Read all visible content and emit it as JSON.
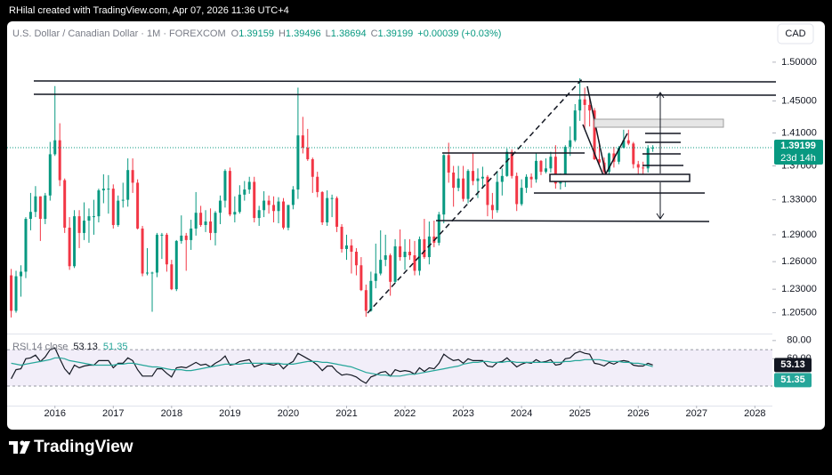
{
  "header": {
    "title": "RHilal created with TradingView.com, Apr 07, 2026 11:36 UTC+4"
  },
  "legend": {
    "symbol": "U.S. Dollar / Canadian Dollar · 1M · FOREXCOM",
    "o_label": "O",
    "open": "1.39159",
    "h_label": "H",
    "high": "1.39496",
    "l_label": "L",
    "low": "1.38694",
    "c_label": "C",
    "close": "1.39199",
    "change": "+0.00039 (+0.03%)"
  },
  "currency_button": "CAD",
  "countdown": "23d 14h",
  "footer": {
    "logo": "TradingView"
  },
  "chart_data": {
    "type": "candlestick",
    "log_scale": true,
    "grid": false,
    "up_color": "#089981",
    "down_color": "#f23645",
    "xlim": [
      2015.18,
      2028.3
    ],
    "xticks": [
      2016,
      2017,
      2018,
      2019,
      2020,
      2021,
      2022,
      2023,
      2024,
      2025,
      2026,
      2027,
      2028
    ],
    "ylim": [
      1.186,
      1.521
    ],
    "yticks": [
      {
        "value": 1.5,
        "label": "1.50000"
      },
      {
        "value": 1.45,
        "label": "1.45000"
      },
      {
        "value": 1.41,
        "label": "1.41000"
      },
      {
        "value": 1.37,
        "label": "1.37000"
      },
      {
        "value": 1.33,
        "label": "1.33000"
      },
      {
        "value": 1.29,
        "label": "1.29000"
      },
      {
        "value": 1.26,
        "label": "1.26000"
      },
      {
        "value": 1.23,
        "label": "1.23000"
      },
      {
        "value": 1.205,
        "label": "1.20500"
      }
    ],
    "x": [
      2015.25,
      2015.333,
      2015.417,
      2015.5,
      2015.583,
      2015.667,
      2015.75,
      2015.833,
      2015.917,
      2016,
      2016.083,
      2016.167,
      2016.25,
      2016.333,
      2016.417,
      2016.5,
      2016.583,
      2016.667,
      2016.75,
      2016.833,
      2016.917,
      2017,
      2017.083,
      2017.167,
      2017.25,
      2017.333,
      2017.417,
      2017.5,
      2017.583,
      2017.667,
      2017.75,
      2017.833,
      2017.917,
      2018,
      2018.083,
      2018.167,
      2018.25,
      2018.333,
      2018.417,
      2018.5,
      2018.583,
      2018.667,
      2018.75,
      2018.833,
      2018.917,
      2019,
      2019.083,
      2019.167,
      2019.25,
      2019.333,
      2019.417,
      2019.5,
      2019.583,
      2019.667,
      2019.75,
      2019.833,
      2019.917,
      2020,
      2020.083,
      2020.167,
      2020.25,
      2020.333,
      2020.417,
      2020.5,
      2020.583,
      2020.667,
      2020.75,
      2020.833,
      2020.917,
      2021,
      2021.083,
      2021.167,
      2021.25,
      2021.333,
      2021.417,
      2021.5,
      2021.583,
      2021.667,
      2021.75,
      2021.833,
      2021.917,
      2022,
      2022.083,
      2022.167,
      2022.25,
      2022.333,
      2022.417,
      2022.5,
      2022.583,
      2022.667,
      2022.75,
      2022.833,
      2022.917,
      2023,
      2023.083,
      2023.167,
      2023.25,
      2023.333,
      2023.417,
      2023.5,
      2023.583,
      2023.667,
      2023.75,
      2023.833,
      2023.917,
      2024,
      2024.083,
      2024.167,
      2024.25,
      2024.333,
      2024.417,
      2024.5,
      2024.583,
      2024.667,
      2024.75,
      2024.833,
      2024.917,
      2025,
      2025.083,
      2025.167,
      2025.25,
      2025.333,
      2025.417,
      2025.5,
      2025.583,
      2025.667,
      2025.75,
      2025.833,
      2025.917,
      2026,
      2026.083,
      2026.167,
      2026.25
    ],
    "open": [
      1.245,
      1.207,
      1.244,
      1.249,
      1.308,
      1.316,
      1.334,
      1.308,
      1.335,
      1.384,
      1.401,
      1.353,
      1.298,
      1.255,
      1.311,
      1.292,
      1.306,
      1.311,
      1.311,
      1.341,
      1.343,
      1.343,
      1.301,
      1.329,
      1.33,
      1.365,
      1.35,
      1.297,
      1.247,
      1.248,
      1.248,
      1.29,
      1.29,
      1.257,
      1.23,
      1.283,
      1.289,
      1.284,
      1.297,
      1.315,
      1.301,
      1.305,
      1.292,
      1.315,
      1.329,
      1.364,
      1.313,
      1.316,
      1.336,
      1.342,
      1.351,
      1.309,
      1.318,
      1.329,
      1.324,
      1.317,
      1.328,
      1.298,
      1.324,
      1.342,
      1.407,
      1.392,
      1.378,
      1.357,
      1.339,
      1.304,
      1.332,
      1.332,
      1.299,
      1.274,
      1.278,
      1.271,
      1.256,
      1.229,
      1.207,
      1.239,
      1.247,
      1.262,
      1.267,
      1.238,
      1.277,
      1.265,
      1.271,
      1.267,
      1.25,
      1.285,
      1.265,
      1.288,
      1.281,
      1.313,
      1.383,
      1.362,
      1.344,
      1.355,
      1.331,
      1.364,
      1.352,
      1.355,
      1.357,
      1.324,
      1.318,
      1.351,
      1.358,
      1.387,
      1.358,
      1.325,
      1.344,
      1.357,
      1.354,
      1.376,
      1.363,
      1.367,
      1.381,
      1.349,
      1.352,
      1.393,
      1.401,
      1.438,
      1.452,
      1.445,
      1.438,
      1.378,
      1.374,
      1.363,
      1.385,
      1.375,
      1.392,
      1.401,
      1.397,
      1.372,
      1.368,
      1.367,
      1.39159
    ],
    "high": [
      1.252,
      1.25,
      1.256,
      1.31,
      1.338,
      1.346,
      1.334,
      1.338,
      1.399,
      1.469,
      1.422,
      1.355,
      1.31,
      1.318,
      1.318,
      1.327,
      1.32,
      1.33,
      1.343,
      1.36,
      1.359,
      1.348,
      1.335,
      1.35,
      1.379,
      1.379,
      1.354,
      1.3,
      1.275,
      1.249,
      1.292,
      1.292,
      1.292,
      1.262,
      1.284,
      1.312,
      1.292,
      1.307,
      1.339,
      1.323,
      1.318,
      1.32,
      1.317,
      1.335,
      1.366,
      1.368,
      1.334,
      1.347,
      1.352,
      1.357,
      1.357,
      1.323,
      1.34,
      1.335,
      1.334,
      1.333,
      1.332,
      1.324,
      1.346,
      1.467,
      1.43,
      1.415,
      1.38,
      1.363,
      1.34,
      1.341,
      1.336,
      1.334,
      1.302,
      1.29,
      1.285,
      1.275,
      1.265,
      1.235,
      1.249,
      1.28,
      1.295,
      1.29,
      1.269,
      1.285,
      1.296,
      1.285,
      1.285,
      1.283,
      1.288,
      1.308,
      1.305,
      1.306,
      1.316,
      1.384,
      1.398,
      1.37,
      1.37,
      1.37,
      1.366,
      1.386,
      1.367,
      1.369,
      1.359,
      1.338,
      1.364,
      1.367,
      1.391,
      1.39,
      1.362,
      1.354,
      1.36,
      1.361,
      1.385,
      1.377,
      1.379,
      1.387,
      1.395,
      1.361,
      1.395,
      1.418,
      1.446,
      1.479,
      1.467,
      1.455,
      1.441,
      1.4,
      1.38,
      1.386,
      1.393,
      1.394,
      1.414,
      1.414,
      1.399,
      1.376,
      1.375,
      1.395,
      1.39496
    ],
    "low": [
      1.2,
      1.205,
      1.222,
      1.242,
      1.295,
      1.31,
      1.283,
      1.302,
      1.329,
      1.382,
      1.346,
      1.292,
      1.251,
      1.253,
      1.275,
      1.284,
      1.281,
      1.29,
      1.304,
      1.326,
      1.314,
      1.297,
      1.299,
      1.321,
      1.322,
      1.338,
      1.296,
      1.244,
      1.245,
      1.206,
      1.243,
      1.263,
      1.249,
      1.229,
      1.228,
      1.28,
      1.25,
      1.273,
      1.289,
      1.299,
      1.293,
      1.284,
      1.278,
      1.302,
      1.321,
      1.311,
      1.304,
      1.314,
      1.329,
      1.337,
      1.304,
      1.3,
      1.31,
      1.314,
      1.304,
      1.303,
      1.296,
      1.295,
      1.319,
      1.331,
      1.385,
      1.376,
      1.338,
      1.333,
      1.301,
      1.3,
      1.31,
      1.293,
      1.27,
      1.262,
      1.247,
      1.245,
      1.228,
      1.2007,
      1.206,
      1.231,
      1.245,
      1.255,
      1.223,
      1.236,
      1.261,
      1.251,
      1.262,
      1.245,
      1.245,
      1.263,
      1.257,
      1.276,
      1.278,
      1.303,
      1.35,
      1.322,
      1.34,
      1.328,
      1.326,
      1.347,
      1.332,
      1.343,
      1.311,
      1.308,
      1.315,
      1.335,
      1.357,
      1.355,
      1.317,
      1.323,
      1.338,
      1.344,
      1.35,
      1.359,
      1.361,
      1.362,
      1.343,
      1.342,
      1.345,
      1.382,
      1.399,
      1.425,
      1.415,
      1.418,
      1.377,
      1.37,
      1.354,
      1.357,
      1.368,
      1.372,
      1.391,
      1.395,
      1.367,
      1.355,
      1.355,
      1.362,
      1.38694
    ],
    "close": [
      1.207,
      1.244,
      1.249,
      1.308,
      1.316,
      1.334,
      1.308,
      1.335,
      1.384,
      1.401,
      1.353,
      1.298,
      1.255,
      1.311,
      1.292,
      1.306,
      1.311,
      1.311,
      1.341,
      1.343,
      1.343,
      1.301,
      1.329,
      1.33,
      1.365,
      1.35,
      1.297,
      1.247,
      1.248,
      1.248,
      1.29,
      1.29,
      1.257,
      1.23,
      1.283,
      1.289,
      1.284,
      1.297,
      1.315,
      1.301,
      1.305,
      1.292,
      1.315,
      1.329,
      1.364,
      1.313,
      1.316,
      1.336,
      1.342,
      1.351,
      1.309,
      1.318,
      1.329,
      1.324,
      1.317,
      1.328,
      1.298,
      1.324,
      1.342,
      1.407,
      1.392,
      1.378,
      1.357,
      1.339,
      1.304,
      1.332,
      1.332,
      1.299,
      1.274,
      1.278,
      1.271,
      1.256,
      1.229,
      1.207,
      1.239,
      1.247,
      1.262,
      1.267,
      1.238,
      1.277,
      1.265,
      1.271,
      1.267,
      1.25,
      1.285,
      1.265,
      1.288,
      1.281,
      1.313,
      1.383,
      1.362,
      1.344,
      1.355,
      1.331,
      1.364,
      1.352,
      1.355,
      1.357,
      1.324,
      1.318,
      1.351,
      1.358,
      1.387,
      1.358,
      1.325,
      1.344,
      1.357,
      1.354,
      1.376,
      1.363,
      1.367,
      1.381,
      1.349,
      1.352,
      1.393,
      1.401,
      1.438,
      1.452,
      1.445,
      1.438,
      1.378,
      1.374,
      1.363,
      1.385,
      1.375,
      1.392,
      1.401,
      1.397,
      1.372,
      1.368,
      1.367,
      1.39159,
      1.39199
    ],
    "indicator": {
      "type": "line",
      "title": "RSI 14 close",
      "ylim": [
        9.5,
        85.7
      ],
      "yticks": [
        {
          "value": 80,
          "label": "80.00"
        },
        {
          "value": 60,
          "label": "60.00"
        }
      ],
      "band": [
        30,
        70
      ],
      "band_color": "#7e57c2",
      "series": [
        {
          "color": "#131722",
          "values": [
            38,
            48,
            49,
            60,
            61,
            64,
            57,
            62,
            70,
            72,
            60,
            49,
            43,
            53,
            50,
            52,
            53,
            53,
            58,
            58,
            58,
            50,
            55,
            55,
            61,
            58,
            48,
            41,
            41,
            41,
            49,
            49,
            44,
            40,
            50,
            51,
            50,
            53,
            56,
            53,
            54,
            51,
            55,
            58,
            63,
            53,
            54,
            57,
            58,
            59,
            51,
            53,
            55,
            54,
            53,
            55,
            49,
            54,
            57,
            66,
            63,
            60,
            57,
            53,
            47,
            52,
            52,
            46,
            42,
            43,
            42,
            40,
            36,
            33,
            40,
            42,
            45,
            46,
            41,
            48,
            46,
            47,
            46,
            43,
            50,
            46,
            50,
            49,
            55,
            65,
            61,
            58,
            59,
            55,
            60,
            58,
            58,
            58,
            52,
            51,
            56,
            57,
            61,
            56,
            51,
            54,
            56,
            55,
            59,
            56,
            57,
            59,
            53,
            54,
            60,
            61,
            66,
            68,
            66,
            65,
            55,
            54,
            52,
            56,
            54,
            57,
            58,
            57,
            53,
            52,
            52,
            55,
            53.13
          ]
        },
        {
          "color": "#26a69a",
          "values": [
            55,
            54,
            53,
            54,
            55,
            56,
            57,
            58,
            59,
            61,
            61,
            60,
            58,
            57,
            56,
            55,
            54,
            53,
            53,
            53,
            53,
            53,
            54,
            54,
            55,
            55,
            54,
            53,
            52,
            51,
            51,
            50,
            49,
            48,
            48,
            48,
            47,
            47,
            48,
            49,
            50,
            51,
            52,
            53,
            54,
            54,
            54,
            54,
            55,
            55,
            55,
            55,
            55,
            55,
            55,
            55,
            54,
            54,
            54,
            55,
            56,
            57,
            57,
            57,
            56,
            56,
            55,
            54,
            53,
            52,
            51,
            49,
            47,
            45,
            44,
            43,
            42,
            42,
            41,
            41,
            41,
            42,
            43,
            43,
            44,
            45,
            46,
            47,
            48,
            49,
            50,
            51,
            52,
            54,
            55,
            56,
            56,
            57,
            57,
            56,
            56,
            56,
            57,
            57,
            56,
            56,
            56,
            56,
            56,
            56,
            56,
            56,
            56,
            56,
            57,
            57,
            58,
            58,
            59,
            59,
            59,
            59,
            58,
            57,
            57,
            57,
            56,
            56,
            55,
            55,
            54,
            53,
            51.35
          ]
        }
      ]
    }
  }
}
